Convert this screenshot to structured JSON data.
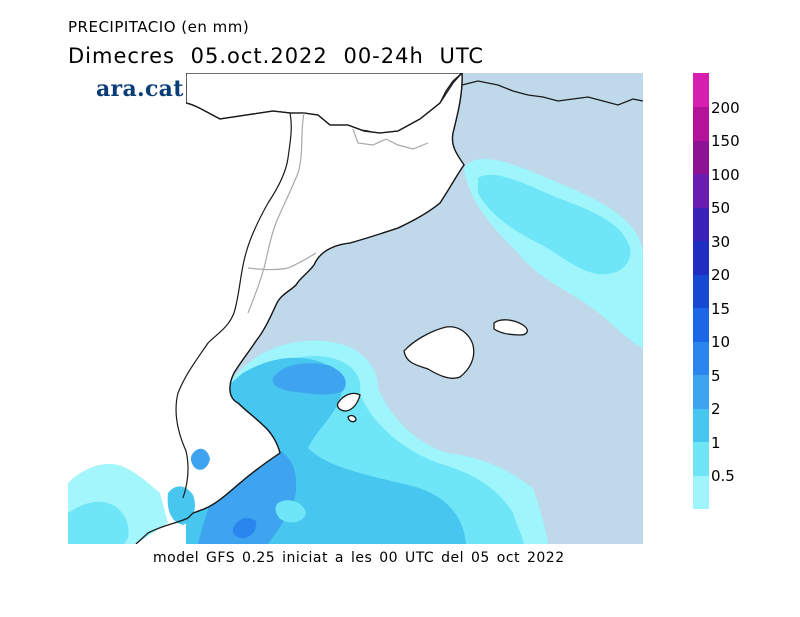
{
  "header": {
    "title_line1": "PRECIPITACIO (en mm)",
    "title_line2": "Dimecres  05.oct.2022 00-24h UTC"
  },
  "logo": {
    "text": "ara.cat",
    "color": "#0a3d78"
  },
  "footer": {
    "caption": "model GFS 0.25 iniciat a les 00 UTC del 05 oct 2022"
  },
  "map": {
    "sea_color": "#c0d9ea",
    "land_color": "#ffffff",
    "coast_color": "#1a1a1a",
    "border_color": "#a8a8a8"
  },
  "legend": {
    "levels": [
      "0.5",
      "1",
      "2",
      "5",
      "10",
      "15",
      "20",
      "30",
      "50",
      "100",
      "150",
      "200"
    ],
    "colors": [
      "#9ef5fb",
      "#6fe6f7",
      "#47c6f0",
      "#3fa4ef",
      "#2a86ee",
      "#1b67e8",
      "#1549d4",
      "#1e2ec2",
      "#3a21b8",
      "#6a1bb0",
      "#8e1294",
      "#b5129a",
      "#d61fb0"
    ]
  }
}
